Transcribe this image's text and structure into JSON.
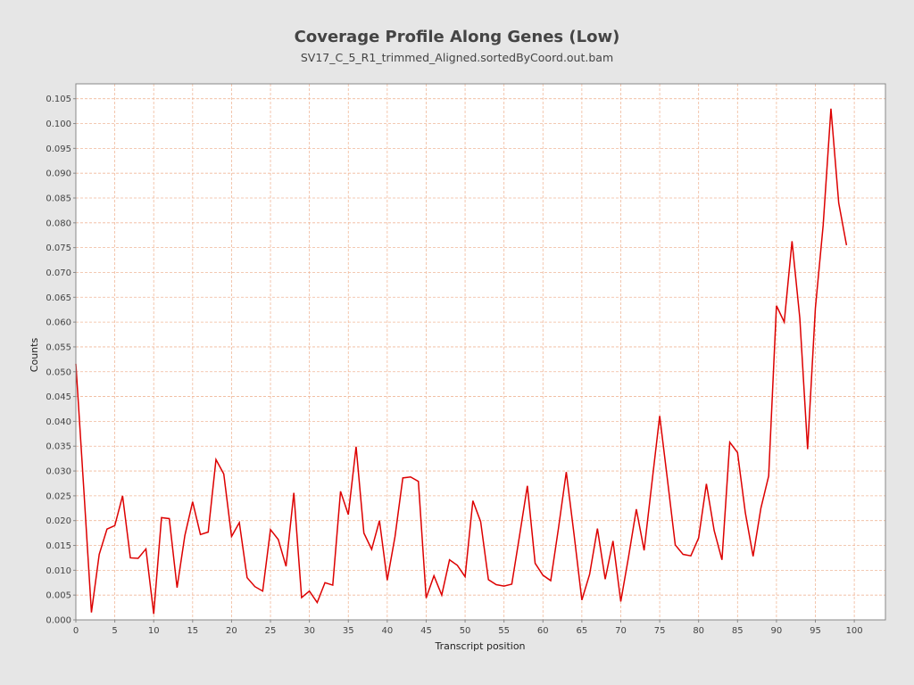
{
  "chart_data": {
    "type": "line",
    "title": "Coverage Profile Along Genes (Low)",
    "subtitle": "SV17_C_5_R1_trimmed_Aligned.sortedByCoord.out.bam",
    "xlabel": "Transcript position",
    "ylabel": "Counts",
    "xlim": [
      0,
      104
    ],
    "ylim": [
      0,
      0.108
    ],
    "xticks": [
      0,
      5,
      10,
      15,
      20,
      25,
      30,
      35,
      40,
      45,
      50,
      55,
      60,
      65,
      70,
      75,
      80,
      85,
      90,
      95,
      100
    ],
    "yticks": [
      "0.000",
      "0.005",
      "0.010",
      "0.015",
      "0.020",
      "0.025",
      "0.030",
      "0.035",
      "0.040",
      "0.045",
      "0.050",
      "0.055",
      "0.060",
      "0.065",
      "0.070",
      "0.075",
      "0.080",
      "0.085",
      "0.090",
      "0.095",
      "0.100",
      "0.105"
    ],
    "grid": true,
    "colors": {
      "line": "#dd0000",
      "grid": "#f0b89a",
      "plot_background": "#ffffff",
      "page_background": "#e6e6e6"
    },
    "series": [
      {
        "x": [
          0,
          1,
          2,
          3,
          4,
          5,
          6,
          7,
          8,
          9,
          10,
          11,
          12,
          13,
          14,
          15,
          16,
          17,
          18,
          19,
          20,
          21,
          22,
          23,
          24,
          25,
          26,
          27,
          28,
          29,
          30,
          31,
          32,
          33,
          34,
          35,
          36,
          37,
          38,
          39,
          40,
          41,
          42,
          43,
          44,
          45,
          46,
          47,
          48,
          49,
          50,
          51,
          52,
          53,
          54,
          55,
          56,
          57,
          58,
          59,
          60,
          61,
          62,
          63,
          64,
          65,
          66,
          67,
          68,
          69,
          70,
          71,
          72,
          73,
          74,
          75,
          76,
          77,
          78,
          79,
          80,
          81,
          82,
          83,
          84,
          85,
          86,
          87,
          88,
          89,
          90,
          91,
          92,
          93,
          94,
          95,
          96,
          97,
          98,
          99
        ],
        "values": [
          0.0516,
          0.0268,
          0.0015,
          0.0132,
          0.0183,
          0.019,
          0.025,
          0.0125,
          0.0124,
          0.0143,
          0.0012,
          0.0206,
          0.0204,
          0.0065,
          0.017,
          0.0238,
          0.0172,
          0.0177,
          0.0323,
          0.0294,
          0.0168,
          0.0196,
          0.0085,
          0.0067,
          0.0058,
          0.0182,
          0.0162,
          0.0108,
          0.0256,
          0.0045,
          0.0058,
          0.0035,
          0.0075,
          0.007,
          0.0259,
          0.0212,
          0.0349,
          0.0175,
          0.0142,
          0.02,
          0.008,
          0.0168,
          0.0286,
          0.0288,
          0.0279,
          0.0044,
          0.0089,
          0.005,
          0.0121,
          0.011,
          0.0087,
          0.024,
          0.0198,
          0.0081,
          0.0071,
          0.0068,
          0.0072,
          0.017,
          0.027,
          0.0114,
          0.009,
          0.0079,
          0.0185,
          0.0298,
          0.0172,
          0.004,
          0.0092,
          0.0184,
          0.0082,
          0.0159,
          0.0037,
          0.0127,
          0.0223,
          0.014,
          0.0276,
          0.0411,
          0.0282,
          0.0151,
          0.0132,
          0.0129,
          0.0165,
          0.0274,
          0.018,
          0.0121,
          0.0358,
          0.0337,
          0.0216,
          0.0128,
          0.0225,
          0.029,
          0.0633,
          0.06,
          0.0763,
          0.0608,
          0.0344,
          0.0628,
          0.0795,
          0.103,
          0.084,
          0.0755
        ]
      }
    ]
  }
}
